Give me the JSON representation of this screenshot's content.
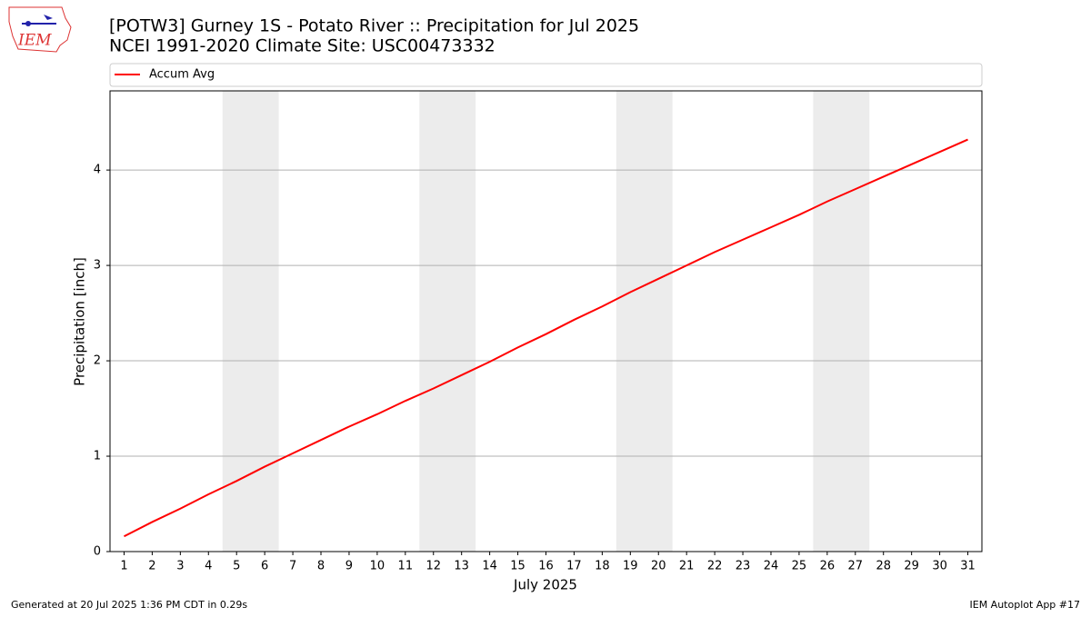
{
  "logo_text": "IEM",
  "footer_left": "Generated at 20 Jul 2025 1:36 PM CDT in 0.29s",
  "footer_right": "IEM Autoplot App #17",
  "chart_data": {
    "type": "line",
    "title": "[POTW3] Gurney 1S - Potato River :: Precipitation for Jul 2025",
    "subtitle": "NCEI 1991-2020 Climate Site: USC00473332",
    "xlabel": "July 2025",
    "ylabel": "Precipitation [inch]",
    "x": [
      1,
      2,
      3,
      4,
      5,
      6,
      7,
      8,
      9,
      10,
      11,
      12,
      13,
      14,
      15,
      16,
      17,
      18,
      19,
      20,
      21,
      22,
      23,
      24,
      25,
      26,
      27,
      28,
      29,
      30,
      31
    ],
    "series": [
      {
        "name": "Accum Avg",
        "color": "#ff0000",
        "values": [
          0.16,
          0.31,
          0.45,
          0.6,
          0.74,
          0.89,
          1.03,
          1.17,
          1.31,
          1.44,
          1.58,
          1.71,
          1.85,
          1.99,
          2.14,
          2.28,
          2.43,
          2.57,
          2.72,
          2.86,
          3.0,
          3.14,
          3.27,
          3.4,
          3.53,
          3.67,
          3.8,
          3.93,
          4.06,
          4.19,
          4.32
        ]
      }
    ],
    "xlim": [
      0.5,
      31.5
    ],
    "xticks": [
      1,
      2,
      3,
      4,
      5,
      6,
      7,
      8,
      9,
      10,
      11,
      12,
      13,
      14,
      15,
      16,
      17,
      18,
      19,
      20,
      21,
      22,
      23,
      24,
      25,
      26,
      27,
      28,
      29,
      30,
      31
    ],
    "ylim": [
      0,
      4.83
    ],
    "yticks": [
      0,
      1,
      2,
      3,
      4
    ],
    "grid": true,
    "shaded_spans": [
      [
        4.5,
        6.5
      ],
      [
        11.5,
        13.5
      ],
      [
        18.5,
        20.5
      ],
      [
        25.5,
        27.5
      ]
    ],
    "shade_color": "#ececec"
  }
}
